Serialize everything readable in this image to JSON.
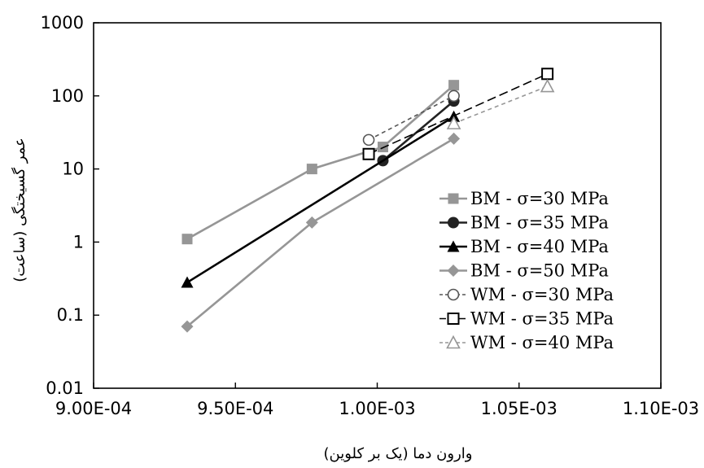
{
  "chart_data": {
    "type": "line",
    "xlabel": "وارون دما (یک بر کلوین)",
    "ylabel": "عمر گسیختگی (ساعت)",
    "xlim": [
      0.0009,
      0.0011
    ],
    "ylim": [
      0.01,
      1000
    ],
    "y_scale": "log",
    "x_ticks": [
      0.0009,
      0.00095,
      0.001,
      0.00105,
      0.0011
    ],
    "x_tick_labels": [
      "9.00E-04",
      "9.50E-04",
      "1.00E-03",
      "1.05E-03",
      "1.10E-03"
    ],
    "y_ticks": [
      0.01,
      0.1,
      1,
      10,
      100,
      1000
    ],
    "y_tick_labels": [
      "0.01",
      "0.1",
      "1",
      "10",
      "100",
      "1000"
    ],
    "grid": false,
    "legend_position": "right",
    "series": [
      {
        "name": "BM - σ=30 MPa",
        "color": "#969696",
        "marker": "square-filled",
        "dash": "solid",
        "x": [
          0.000933,
          0.000977,
          0.001002,
          0.001027
        ],
        "y": [
          1.1,
          10,
          20,
          140
        ]
      },
      {
        "name": "BM - σ=35 MPa",
        "color": "#222222",
        "marker": "circle-filled",
        "dash": "solid",
        "x": [
          0.001002,
          0.001027
        ],
        "y": [
          13,
          85
        ]
      },
      {
        "name": "BM - σ=40 MPa",
        "color": "#000000",
        "marker": "triangle-filled",
        "dash": "solid",
        "x": [
          0.000933,
          0.001027
        ],
        "y": [
          0.28,
          52
        ]
      },
      {
        "name": "BM - σ=50 MPa",
        "color": "#969696",
        "marker": "diamond-filled",
        "dash": "solid",
        "x": [
          0.000933,
          0.000977,
          0.001027
        ],
        "y": [
          0.07,
          1.85,
          26
        ]
      },
      {
        "name": "WM - σ=30 MPa",
        "color": "#555555",
        "marker": "circle-open",
        "dash": "dash",
        "x": [
          0.000997,
          0.001027
        ],
        "y": [
          25,
          100
        ]
      },
      {
        "name": "WM - σ=35 MPa",
        "color": "#000000",
        "marker": "square-open",
        "dash": "longdash",
        "x": [
          0.000997,
          0.00106
        ],
        "y": [
          16,
          200
        ]
      },
      {
        "name": "WM - σ=40 MPa",
        "color": "#969696",
        "marker": "triangle-open",
        "dash": "dash",
        "x": [
          0.001027,
          0.00106
        ],
        "y": [
          42,
          135
        ]
      }
    ]
  }
}
